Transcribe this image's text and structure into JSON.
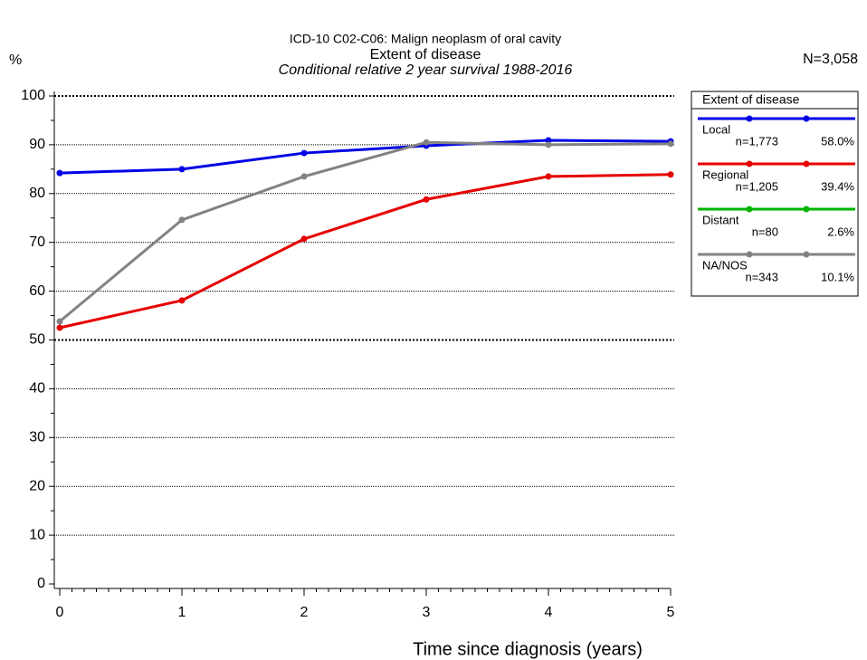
{
  "chart_data": {
    "type": "line",
    "title": "ICD-10 C02-C06: Malign neoplasm of oral cavity",
    "subtitle": "Extent of disease",
    "subtitle2": "Conditional relative 2 year survival 1988-2016",
    "y_label": "%",
    "x_label": "Time since diagnosis (years)",
    "total": "N=3,058",
    "legend_title": "Extent of disease",
    "x": [
      0,
      1,
      2,
      3,
      4,
      5
    ],
    "xlim": [
      0,
      5
    ],
    "xticks": [
      0,
      1,
      2,
      3,
      4,
      5
    ],
    "ylim": [
      0,
      100
    ],
    "yticks": [
      0,
      10,
      20,
      30,
      40,
      50,
      60,
      70,
      80,
      90,
      100
    ],
    "grid": true,
    "legend": "right",
    "series": [
      {
        "name": "Local",
        "color": "#0000e6",
        "n_label": "n=1,773",
        "share_label": "58.0%",
        "values": [
          84.2,
          85.0,
          88.3,
          89.8,
          90.9,
          90.7
        ]
      },
      {
        "name": "Regional",
        "color": "#e60000",
        "n_label": "n=1,205",
        "share_label": "39.4%",
        "values": [
          52.5,
          58.1,
          70.7,
          78.8,
          83.5,
          83.9
        ]
      },
      {
        "name": "Distant",
        "color": "#00b400",
        "n_label": "n=80",
        "share_label": "2.6%",
        "values": [
          null,
          null,
          null,
          null,
          null,
          null
        ]
      },
      {
        "name": "NA/NOS",
        "color": "#828282",
        "n_label": "n=343",
        "share_label": "10.1%",
        "values": [
          53.8,
          74.6,
          83.5,
          90.5,
          90.0,
          90.2
        ]
      }
    ]
  }
}
